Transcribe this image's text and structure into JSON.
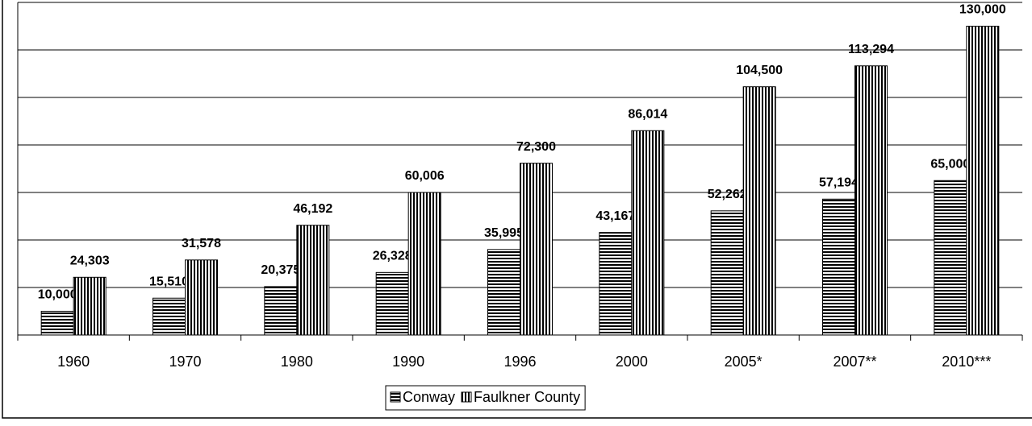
{
  "chart_data": {
    "type": "bar",
    "categories": [
      "1960",
      "1970",
      "1980",
      "1990",
      "1996",
      "2000",
      "2005*",
      "2007**",
      "2010***"
    ],
    "series": [
      {
        "name": "Conway",
        "color": "#000000",
        "pattern": "horizontal",
        "values": [
          10000,
          15510,
          20375,
          26328,
          35995,
          43167,
          52262,
          57194,
          65000
        ],
        "value_labels": [
          "10,000",
          "15,510",
          "20,375",
          "26,328",
          "35,995",
          "43,167",
          "52,262",
          "57,194",
          "65,000"
        ]
      },
      {
        "name": "Faulkner County",
        "color": "#000000",
        "pattern": "vertical",
        "values": [
          24303,
          31578,
          46192,
          60006,
          72300,
          86014,
          104500,
          113294,
          130000
        ],
        "value_labels": [
          "24,303",
          "31,578",
          "46,192",
          "60,006",
          "72,300",
          "86,014",
          "104,500",
          "113,294",
          "130,000"
        ]
      }
    ],
    "ylim": [
      0,
      140000
    ],
    "yticks": [
      0,
      20000,
      40000,
      60000,
      80000,
      100000,
      120000,
      140000
    ],
    "grid": true,
    "legend": "bottom"
  }
}
